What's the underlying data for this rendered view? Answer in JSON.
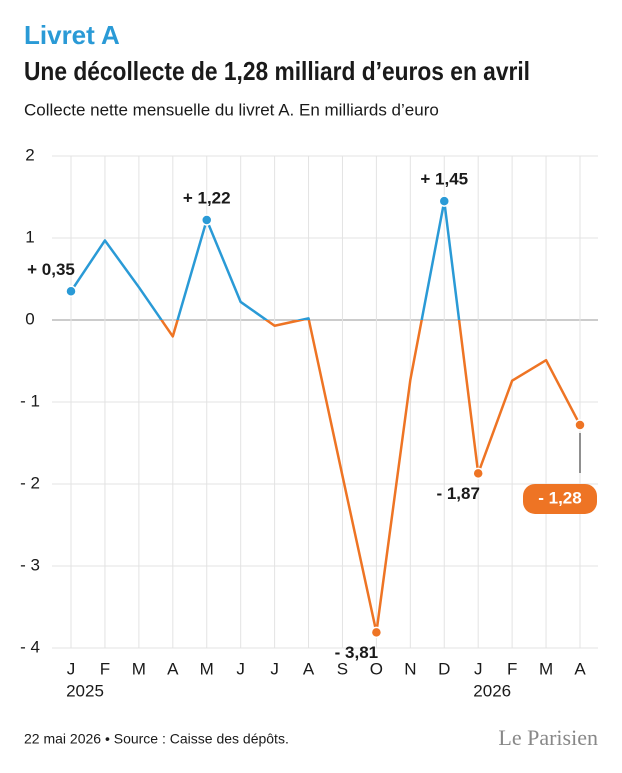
{
  "kicker": "Livret A",
  "footer": {
    "source": "22 mai 2026 • Source : Caisse des dépôts.",
    "logo": "Le Parisien"
  },
  "chart_data": {
    "type": "line",
    "title": "Une décollecte de 1,28 milliard d’euros en avril",
    "subtitle": "Collecte nette mensuelle du livret A. En milliards d’euro",
    "categories": [
      "J",
      "F",
      "M",
      "A",
      "M",
      "J",
      "J",
      "A",
      "S",
      "O",
      "N",
      "D",
      "J",
      "F",
      "M",
      "A"
    ],
    "x_group_labels": [
      "2025",
      null,
      null,
      null,
      null,
      null,
      null,
      null,
      null,
      null,
      null,
      null,
      "2026",
      null,
      null,
      null
    ],
    "series": [
      {
        "values": [
          0.35,
          0.97,
          0.4,
          -0.2,
          1.22,
          0.22,
          -0.07,
          0.02,
          -1.9,
          -3.81,
          -0.73,
          1.45,
          -1.87,
          -0.74,
          -0.49,
          -1.28
        ],
        "value_labels": [
          "+ 0,35",
          null,
          null,
          null,
          "+ 1,22",
          null,
          null,
          null,
          null,
          "- 3,81",
          null,
          "+ 1,45",
          "- 1,87",
          null,
          null,
          "- 1,28"
        ],
        "positive_color": "#2a9ad6",
        "negative_color": "#ee7424"
      }
    ],
    "ylim": [
      -4,
      2
    ],
    "yticks": [
      2,
      1,
      0,
      {
        "value": -1,
        "label": "- 1"
      },
      {
        "value": -2,
        "label": "- 2"
      },
      {
        "value": -3,
        "label": "- 3"
      },
      {
        "value": -4,
        "label": "- 4"
      }
    ],
    "grid": true
  }
}
